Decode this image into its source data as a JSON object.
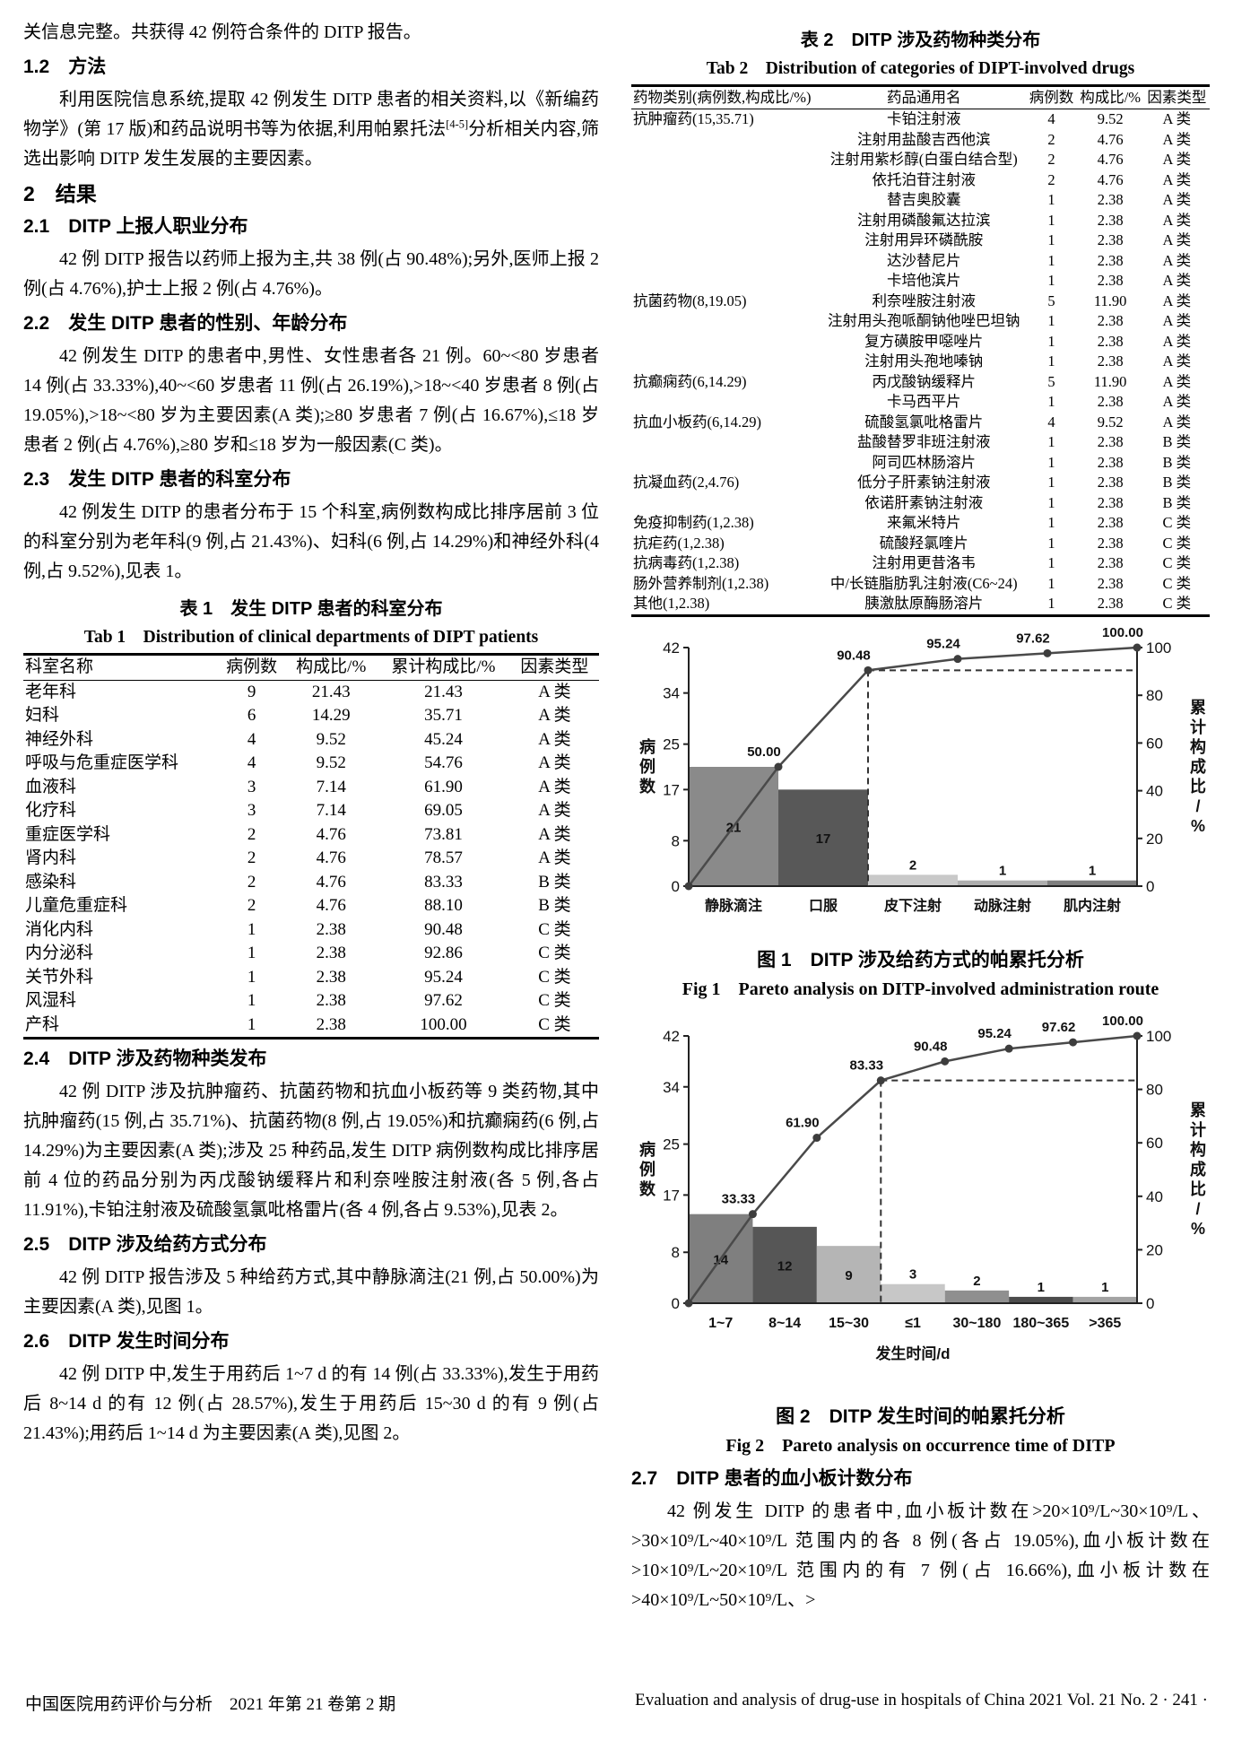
{
  "left": {
    "intro": "关信息完整。共获得 42 例符合条件的 DITP 报告。",
    "h12": "1.2　方法",
    "p12_before": "利用医院信息系统,提取 42 例发生 DITP 患者的相关资料,以《新编药物学》(第 17 版)和药品说明书等为依据,利用帕累托法",
    "p12_sup": "[4-5]",
    "p12_after": "分析相关内容,筛选出影响 DITP 发生发展的主要因素。",
    "h2": "2　结果",
    "h21": "2.1　DITP 上报人职业分布",
    "p21": "42 例 DITP 报告以药师上报为主,共 38 例(占 90.48%);另外,医师上报 2 例(占 4.76%),护士上报 2 例(占 4.76%)。",
    "h22": "2.2　发生 DITP 患者的性别、年龄分布",
    "p22": "42 例发生 DITP 的患者中,男性、女性患者各 21 例。60~<80 岁患者 14 例(占 33.33%),40~<60 岁患者 11 例(占 26.19%),>18~<40 岁患者 8 例(占 19.05%),>18~<80 岁为主要因素(A 类);≥80 岁患者 7 例(占 16.67%),≤18 岁患者 2 例(占 4.76%),≥80 岁和≤18 岁为一般因素(C 类)。",
    "h23": "2.3　发生 DITP 患者的科室分布",
    "p23": "42 例发生 DITP 的患者分布于 15 个科室,病例数构成比排序居前 3 位的科室分别为老年科(9 例,占 21.43%)、妇科(6 例,占 14.29%)和神经外科(4 例,占 9.52%),见表 1。",
    "h24": "2.4　DITP 涉及药物种类发布",
    "p24": "42 例 DITP 涉及抗肿瘤药、抗菌药物和抗血小板药等 9 类药物,其中抗肿瘤药(15 例,占 35.71%)、抗菌药物(8 例,占 19.05%)和抗癫痫药(6 例,占 14.29%)为主要因素(A 类);涉及 25 种药品,发生 DITP 病例数构成比排序居前 4 位的药品分别为丙戊酸钠缓释片和利奈唑胺注射液(各 5 例,各占 11.91%),卡铂注射液及硫酸氢氯吡格雷片(各 4 例,各占 9.53%),见表 2。",
    "h25": "2.5　DITP 涉及给药方式分布",
    "p25": "42 例 DITP 报告涉及 5 种给药方式,其中静脉滴注(21 例,占 50.00%)为主要因素(A 类),见图 1。",
    "h26": "2.6　DITP 发生时间分布",
    "p26": "42 例 DITP 中,发生于用药后 1~7 d 的有 14 例(占 33.33%),发生于用药后 8~14 d 的有 12 例(占 28.57%),发生于用药后 15~30 d 的有 9 例(占 21.43%);用药后 1~14 d 为主要因素(A 类),见图 2。"
  },
  "right": {
    "h27": "2.7　DITP 患者的血小板计数分布",
    "p27": "42 例发生 DITP 的患者中,血小板计数在>20×10⁹/L~30×10⁹/L、>30×10⁹/L~40×10⁹/L 范围内的各 8 例(各占 19.05%),血小板计数在>10×10⁹/L~20×10⁹/L 范围内的有 7 例(占 16.66%),血小板计数在>40×10⁹/L~50×10⁹/L、>"
  },
  "table1": {
    "title_cn": "表 1　发生 DITP 患者的科室分布",
    "title_en": "Tab 1　Distribution of clinical departments of DIPT patients",
    "headers": [
      "科室名称",
      "病例数",
      "构成比/%",
      "累计构成比/%",
      "因素类型"
    ],
    "rows": [
      [
        "老年科",
        "9",
        "21.43",
        "21.43",
        "A 类"
      ],
      [
        "妇科",
        "6",
        "14.29",
        "35.71",
        "A 类"
      ],
      [
        "神经外科",
        "4",
        "9.52",
        "45.24",
        "A 类"
      ],
      [
        "呼吸与危重症医学科",
        "4",
        "9.52",
        "54.76",
        "A 类"
      ],
      [
        "血液科",
        "3",
        "7.14",
        "61.90",
        "A 类"
      ],
      [
        "化疗科",
        "3",
        "7.14",
        "69.05",
        "A 类"
      ],
      [
        "重症医学科",
        "2",
        "4.76",
        "73.81",
        "A 类"
      ],
      [
        "肾内科",
        "2",
        "4.76",
        "78.57",
        "A 类"
      ],
      [
        "感染科",
        "2",
        "4.76",
        "83.33",
        "B 类"
      ],
      [
        "儿童危重症科",
        "2",
        "4.76",
        "88.10",
        "B 类"
      ],
      [
        "消化内科",
        "1",
        "2.38",
        "90.48",
        "C 类"
      ],
      [
        "内分泌科",
        "1",
        "2.38",
        "92.86",
        "C 类"
      ],
      [
        "关节外科",
        "1",
        "2.38",
        "95.24",
        "C 类"
      ],
      [
        "风湿科",
        "1",
        "2.38",
        "97.62",
        "C 类"
      ],
      [
        "产科",
        "1",
        "2.38",
        "100.00",
        "C 类"
      ]
    ]
  },
  "table2": {
    "title_cn": "表 2　DITP 涉及药物种类分布",
    "title_en": "Tab 2　Distribution of categories of DIPT-involved drugs",
    "headers": [
      "药物类别(病例数,构成比/%)",
      "药品通用名",
      "病例数",
      "构成比/%",
      "因素类型"
    ],
    "rows": [
      [
        "抗肿瘤药(15,35.71)",
        "卡铂注射液",
        "4",
        "9.52",
        "A 类"
      ],
      [
        "",
        "注射用盐酸吉西他滨",
        "2",
        "4.76",
        "A 类"
      ],
      [
        "",
        "注射用紫杉醇(白蛋白结合型)",
        "2",
        "4.76",
        "A 类"
      ],
      [
        "",
        "依托泊苷注射液",
        "2",
        "4.76",
        "A 类"
      ],
      [
        "",
        "替吉奥胶囊",
        "1",
        "2.38",
        "A 类"
      ],
      [
        "",
        "注射用磷酸氟达拉滨",
        "1",
        "2.38",
        "A 类"
      ],
      [
        "",
        "注射用异环磷酰胺",
        "1",
        "2.38",
        "A 类"
      ],
      [
        "",
        "达沙替尼片",
        "1",
        "2.38",
        "A 类"
      ],
      [
        "",
        "卡培他滨片",
        "1",
        "2.38",
        "A 类"
      ],
      [
        "抗菌药物(8,19.05)",
        "利奈唑胺注射液",
        "5",
        "11.90",
        "A 类"
      ],
      [
        "",
        "注射用头孢哌酮钠他唑巴坦钠",
        "1",
        "2.38",
        "A 类"
      ],
      [
        "",
        "复方磺胺甲噁唑片",
        "1",
        "2.38",
        "A 类"
      ],
      [
        "",
        "注射用头孢地嗪钠",
        "1",
        "2.38",
        "A 类"
      ],
      [
        "抗癫痫药(6,14.29)",
        "丙戊酸钠缓释片",
        "5",
        "11.90",
        "A 类"
      ],
      [
        "",
        "卡马西平片",
        "1",
        "2.38",
        "A 类"
      ],
      [
        "抗血小板药(6,14.29)",
        "硫酸氢氯吡格雷片",
        "4",
        "9.52",
        "A 类"
      ],
      [
        "",
        "盐酸替罗非班注射液",
        "1",
        "2.38",
        "B 类"
      ],
      [
        "",
        "阿司匹林肠溶片",
        "1",
        "2.38",
        "B 类"
      ],
      [
        "抗凝血药(2,4.76)",
        "低分子肝素钠注射液",
        "1",
        "2.38",
        "B 类"
      ],
      [
        "",
        "依诺肝素钠注射液",
        "1",
        "2.38",
        "B 类"
      ],
      [
        "免疫抑制药(1,2.38)",
        "来氟米特片",
        "1",
        "2.38",
        "C 类"
      ],
      [
        "抗疟药(1,2.38)",
        "硫酸羟氯喹片",
        "1",
        "2.38",
        "C 类"
      ],
      [
        "抗病毒药(1,2.38)",
        "注射用更昔洛韦",
        "1",
        "2.38",
        "C 类"
      ],
      [
        "肠外营养制剂(1,2.38)",
        "中/长链脂肪乳注射液(C6~24)",
        "1",
        "2.38",
        "C 类"
      ],
      [
        "其他(1,2.38)",
        "胰激肽原酶肠溶片",
        "1",
        "2.38",
        "C 类"
      ]
    ]
  },
  "chart_data": [
    {
      "type": "bar",
      "subtype": "pareto",
      "title_cn": "图 1　DITP 涉及给药方式的帕累托分析",
      "title_en": "Fig 1　Pareto analysis on DITP-involved administration route",
      "categories": [
        "静脉滴注",
        "口服",
        "皮下注射",
        "动脉注射",
        "肌内注射"
      ],
      "values": [
        21,
        17,
        2,
        1,
        1
      ],
      "cumulative": [
        50.0,
        90.48,
        95.24,
        97.62,
        100.0
      ],
      "bar_colors": [
        "#8a8a8a",
        "#585858",
        "#c9c9c9",
        "#aeaeae",
        "#7f7f7f"
      ],
      "line_color": "#4a4a4a",
      "xlabel": "",
      "ylabel": "病例数",
      "y2label": "累计构成比/%",
      "yticks": [
        0,
        8,
        17,
        25,
        34,
        42
      ],
      "y2ticks": [
        0,
        20,
        40,
        60,
        80,
        100
      ],
      "ylim": [
        0,
        42
      ],
      "y2lim": [
        0,
        100
      ],
      "dash_index": 1,
      "grid": false,
      "legend": "none"
    },
    {
      "type": "bar",
      "subtype": "pareto",
      "title_cn": "图 2　DITP 发生时间的帕累托分析",
      "title_en": "Fig 2　Pareto analysis on occurrence time of DITP",
      "categories": [
        "1~7",
        "8~14",
        "15~30",
        "≤1",
        "30~180",
        "180~365",
        ">365"
      ],
      "values": [
        14,
        12,
        9,
        3,
        2,
        1,
        1
      ],
      "cumulative": [
        33.33,
        61.9,
        83.33,
        90.48,
        95.24,
        97.62,
        100.0
      ],
      "bar_colors": [
        "#7f7f7f",
        "#565656",
        "#b5b5b5",
        "#c7c7c7",
        "#8f8f8f",
        "#4c4c4c",
        "#a3a3a3"
      ],
      "line_color": "#4a4a4a",
      "xlabel": "发生时间/d",
      "ylabel": "病例数",
      "y2label": "累计构成比/%",
      "yticks": [
        0,
        8,
        17,
        25,
        34,
        42
      ],
      "y2ticks": [
        0,
        20,
        40,
        60,
        80,
        100
      ],
      "ylim": [
        0,
        42
      ],
      "y2lim": [
        0,
        100
      ],
      "dash_index": 2,
      "grid": false,
      "legend": "none"
    }
  ],
  "footer": {
    "left": "中国医院用药评价与分析　2021 年第 21 卷第 2 期",
    "right": "Evaluation and analysis of drug-use in hospitals of China 2021 Vol. 21 No. 2 · 241 ·"
  }
}
